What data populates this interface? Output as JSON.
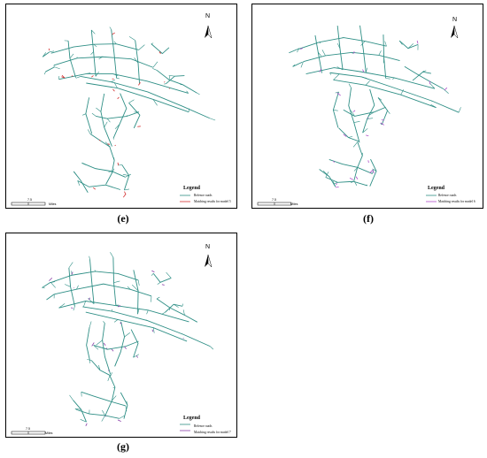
{
  "panels": [
    {
      "id": "e",
      "caption": "(e)",
      "north": "N",
      "legend_title": "Legend",
      "legend_items": [
        {
          "label": "Refence roads",
          "color": "#2f8f86"
        },
        {
          "label": "Matching results for model 5",
          "color": "#d32f2f"
        }
      ],
      "scale_number": "7.5",
      "scale_unit": "Miles",
      "road_color": "#2f8f86",
      "highlight_color": "#d32f2f"
    },
    {
      "id": "f",
      "caption": "(f)",
      "north": "N",
      "legend_title": "Legend",
      "legend_items": [
        {
          "label": "Refence roads",
          "color": "#2f8f86"
        },
        {
          "label": "Matching results for model 6",
          "color": "#b04fc9"
        }
      ],
      "scale_number": "7.5",
      "scale_unit": "Miles",
      "road_color": "#2f8f86",
      "highlight_color": "#b04fc9"
    },
    {
      "id": "g",
      "caption": "(g)",
      "north": "N",
      "legend_title": "Legend",
      "legend_items": [
        {
          "label": "Refence roads",
          "color": "#2f8f86"
        },
        {
          "label": "Matching results for model 7",
          "color": "#8a3fa8"
        }
      ],
      "scale_number": "7.5",
      "scale_unit": "Miles",
      "road_color": "#2f8f86",
      "highlight_color": "#8a3fa8"
    }
  ]
}
